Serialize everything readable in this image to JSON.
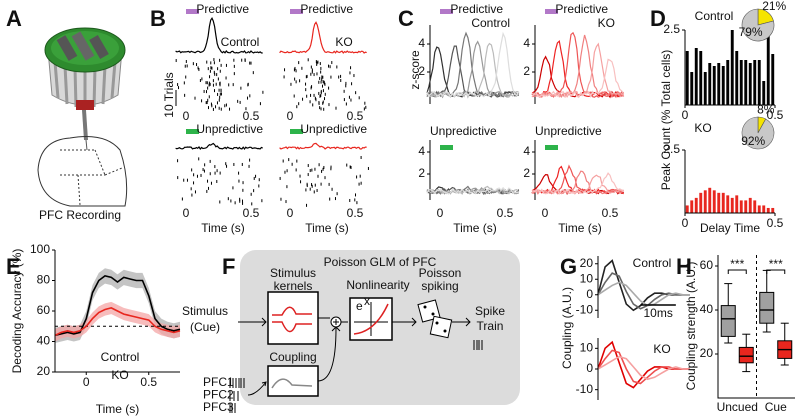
{
  "panel_labels": [
    "A",
    "B",
    "C",
    "D",
    "E",
    "F",
    "G",
    "H"
  ],
  "panel_a": {
    "caption": "PFC Recording"
  },
  "panel_b": {
    "stimuli": [
      "Predictive",
      "Unpredictive"
    ],
    "groups": [
      "Control",
      "KO"
    ],
    "trials_label": "10 Trials",
    "xticks": [
      0,
      0.5
    ],
    "x_label": "Time (s)"
  },
  "panel_c": {
    "stimuli": [
      "Predictive",
      "Unpredictive"
    ],
    "groups": [
      "Control",
      "KO"
    ],
    "y_label": "z-score",
    "yticks": [
      2,
      4
    ],
    "xticks": [
      0,
      0.5
    ],
    "x_label": "Time (s)"
  },
  "panel_f": {
    "title": "Poisson GLM of PFC",
    "input_lines": [
      "Stimulus",
      "(Cue)"
    ],
    "kernel_lines": [
      "Stimulus",
      "kernels"
    ],
    "nonlinearity": "Nonlinearity",
    "formula": {
      "base": "e",
      "exponent": "x"
    },
    "spiking_lines": [
      "Poisson",
      "spiking"
    ],
    "output_lines": [
      "Spike",
      "Train"
    ],
    "coupling": "Coupling",
    "neurons": [
      "PFC1",
      "PFC2",
      "PFC3"
    ]
  },
  "chart_data": [
    {
      "type": "histogram",
      "title": "Control",
      "color": "#000000",
      "bins": [
        0,
        0.025,
        0.05,
        0.075,
        0.1,
        0.125,
        0.15,
        0.175,
        0.2,
        0.225,
        0.25,
        0.275,
        0.3,
        0.325,
        0.35,
        0.375,
        0.4,
        0.425,
        0.45,
        0.475,
        0.5
      ],
      "values": [
        1.8,
        1.1,
        1.9,
        1.8,
        1.1,
        1.4,
        1.3,
        1.4,
        1.3,
        1.5,
        2.5,
        1.8,
        1.5,
        1.5,
        1.4,
        1.5,
        1.5,
        0.8,
        2.5,
        1.7
      ],
      "xlim": [
        0,
        0.5
      ],
      "xticks": [
        0,
        0.5
      ],
      "ylim": [
        0,
        2.5
      ],
      "yticks": [
        2.5
      ],
      "y_label": "Peak Count (% Total cells)"
    },
    {
      "type": "histogram",
      "title": "KO",
      "color": "#e8261e",
      "bins": [
        0,
        0.025,
        0.05,
        0.075,
        0.1,
        0.125,
        0.15,
        0.175,
        0.2,
        0.225,
        0.25,
        0.275,
        0.3,
        0.325,
        0.35,
        0.375,
        0.4,
        0.425,
        0.45,
        0.475,
        0.5
      ],
      "values": [
        0.3,
        0.5,
        0.6,
        0.8,
        0.9,
        1.0,
        0.9,
        0.8,
        0.8,
        0.7,
        0.6,
        0.7,
        0.5,
        0.5,
        0.6,
        0.5,
        0.3,
        0.3,
        0.2,
        0.2
      ],
      "xlim": [
        0,
        0.5
      ],
      "xticks": [
        0,
        0.5
      ],
      "ylim": [
        0,
        2.5
      ],
      "yticks": [
        2.5
      ],
      "x_label": "Delay Time"
    },
    {
      "type": "pie",
      "values": [
        21,
        79
      ],
      "value_labels": [
        "21%",
        "79%"
      ],
      "colors": [
        "#f5e400",
        "#c8c8c8"
      ]
    },
    {
      "type": "pie",
      "values": [
        8,
        92
      ],
      "value_labels": [
        "8%",
        "92%"
      ],
      "colors": [
        "#f5e400",
        "#c8c8c8"
      ]
    },
    {
      "type": "line",
      "x": [
        -0.25,
        -0.2,
        -0.15,
        -0.1,
        -0.05,
        0,
        0.05,
        0.1,
        0.15,
        0.2,
        0.25,
        0.3,
        0.35,
        0.4,
        0.45,
        0.5,
        0.55,
        0.6,
        0.65,
        0.7,
        0.75
      ],
      "series": [
        {
          "name": "Control",
          "color": "#000000",
          "band_color": "#b0b0b0",
          "values": [
            44,
            45,
            46,
            45,
            46,
            55,
            72,
            80,
            83,
            82,
            79,
            82,
            81,
            80,
            80,
            70,
            55,
            50,
            48,
            47,
            48
          ],
          "error": [
            5,
            5,
            5,
            5,
            5,
            5,
            5,
            5,
            5,
            5,
            5,
            5,
            5,
            5,
            5,
            5,
            5,
            5,
            5,
            5,
            5
          ]
        },
        {
          "name": "KO",
          "color": "#e8261e",
          "band_color": "#f4a6a6",
          "values": [
            44,
            46,
            47,
            46,
            47,
            50,
            55,
            59,
            61,
            62,
            60,
            58,
            57,
            56,
            55,
            54,
            50,
            48,
            47,
            46,
            47
          ],
          "error": [
            4,
            4,
            4,
            4,
            4,
            4,
            4,
            4,
            4,
            4,
            4,
            4,
            4,
            4,
            4,
            4,
            4,
            4,
            4,
            4,
            4
          ]
        }
      ],
      "xlim": [
        -0.25,
        0.75
      ],
      "xticks": [
        0,
        0.5
      ],
      "ylim": [
        20,
        100
      ],
      "yticks": [
        20,
        40,
        60,
        80,
        100
      ],
      "reference_line": 50,
      "x_label": "Time (s)",
      "y_label": "Decoding Accuracy (%)"
    },
    {
      "type": "line",
      "title": "Control",
      "title_color": "#000000",
      "x": [
        0,
        2,
        4,
        6,
        8,
        10,
        12,
        14,
        16,
        18,
        20,
        22,
        24,
        26
      ],
      "series": [
        {
          "color": "#222222",
          "values": [
            0,
            18,
            22,
            8,
            -6,
            -10,
            -7,
            -2,
            1,
            1,
            0,
            0,
            0,
            0
          ]
        },
        {
          "color": "#666666",
          "values": [
            0,
            8,
            14,
            12,
            2,
            -6,
            -9,
            -7,
            -3,
            0,
            1,
            0,
            0,
            0
          ]
        },
        {
          "color": "#aaaaaa",
          "values": [
            0,
            3,
            6,
            8,
            6,
            1,
            -4,
            -7,
            -6,
            -3,
            0,
            1,
            0,
            0
          ]
        }
      ],
      "xlim": [
        0,
        26
      ],
      "ylim": [
        -15,
        25
      ],
      "yticks": [
        20,
        10,
        0,
        -10
      ],
      "y_label": "Coupling (A.U.)",
      "scale_bar": {
        "value": 10,
        "label": "10ms"
      }
    },
    {
      "type": "line",
      "title": "KO",
      "title_color": "#e8261e",
      "x": [
        0,
        2,
        4,
        6,
        8,
        10,
        12,
        14,
        16,
        18,
        20,
        22,
        24,
        26
      ],
      "series": [
        {
          "color": "#e00000",
          "values": [
            0,
            10,
            13,
            3,
            -7,
            -9,
            -5,
            -1,
            1,
            1,
            0,
            0,
            0,
            0
          ]
        },
        {
          "color": "#ee5050",
          "values": [
            0,
            5,
            9,
            8,
            0,
            -6,
            -7,
            -4,
            -1,
            1,
            1,
            0,
            0,
            0
          ]
        },
        {
          "color": "#f5a0a0",
          "values": [
            0,
            2,
            4,
            6,
            5,
            1,
            -3,
            -5,
            -4,
            -2,
            0,
            1,
            0,
            0
          ]
        }
      ],
      "xlim": [
        0,
        26
      ],
      "ylim": [
        -15,
        15
      ],
      "yticks": [
        10,
        0,
        -10
      ]
    },
    {
      "type": "box",
      "categories": [
        "Uncued",
        "Cue"
      ],
      "series": [
        {
          "color": "#a0a0a0",
          "boxes": [
            {
              "whislo": 25,
              "q1": 28,
              "med": 36,
              "q3": 42,
              "whishi": 52
            },
            {
              "whislo": 30,
              "q1": 34,
              "med": 40,
              "q3": 48,
              "whishi": 58
            }
          ]
        },
        {
          "color": "#e8261e",
          "boxes": [
            {
              "whislo": 12,
              "q1": 16,
              "med": 19,
              "q3": 23,
              "whishi": 29
            },
            {
              "whislo": 15,
              "q1": 18,
              "med": 22,
              "q3": 26,
              "whishi": 34
            }
          ]
        }
      ],
      "annotations": [
        "***",
        "***"
      ],
      "ylim": [
        0,
        65
      ],
      "yticks": [
        20,
        40,
        60
      ],
      "y_label": "Coupling strength (A.U.)"
    }
  ]
}
